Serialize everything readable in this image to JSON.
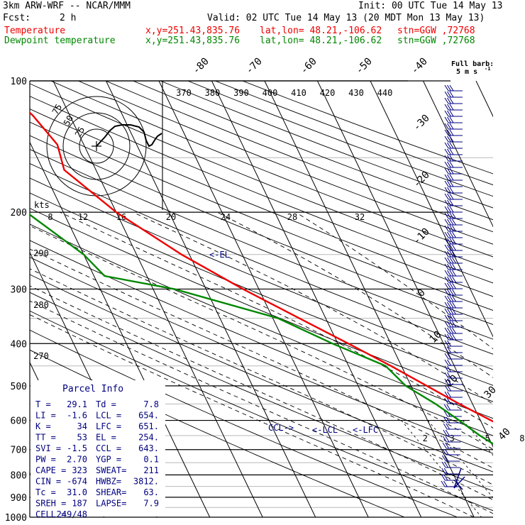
{
  "header": {
    "model": "3km ARW-WRF -- NCAR/MMM",
    "init": "Init: 00 UTC Tue 14 May 13",
    "fcst_label": "Fcst:",
    "fcst_value": "2 h",
    "valid": "Valid: 02 UTC Tue 14 May 13 (20 MDT Mon 13 May 13)",
    "temp_line": {
      "name": "Temperature",
      "xy": "x,y=251.43,835.76",
      "latlon": "lat,lon= 48.21,-106.62",
      "stn": "stn=GGW ,72768",
      "color": "#ee0000"
    },
    "dew_line": {
      "name": "Dewpoint temperature",
      "xy": "x,y=251.43,835.76",
      "latlon": "lat,lon= 48.21,-106.62",
      "stn": "stn=GGW ,72768",
      "color": "#008800"
    }
  },
  "barb_legend": {
    "line1": "Full barb:",
    "line2": "5 m s",
    "unit_sup": "-1"
  },
  "parcel_info": {
    "title": "Parcel Info",
    "rows": [
      [
        "T  =",
        "29.1",
        "Td  =",
        "7.8"
      ],
      [
        "LI  =",
        "-1.6",
        "LCL =",
        "654."
      ],
      [
        "K  =",
        "34",
        "LFC =",
        "651."
      ],
      [
        "TT  =",
        "53",
        "EL  =",
        "254."
      ],
      [
        "SVI =",
        "-1.5",
        "CCL =",
        "643."
      ],
      [
        "PW  =",
        "2.70",
        "YGP =",
        "0.1"
      ],
      [
        "CAPE =",
        "323",
        "SWEAT=",
        "211"
      ],
      [
        "CIN  =",
        "-674",
        "HWBZ=",
        "3812."
      ],
      [
        "Tc  =",
        "31.0",
        "SHEAR=",
        "63."
      ],
      [
        "SREH =",
        "187",
        "LAPSE=",
        "7.9"
      ],
      [
        "CELL =",
        "249/48",
        "",
        ""
      ]
    ]
  },
  "chart_data": {
    "type": "line",
    "subtype": "skew-T log-p diagram",
    "pressure_levels": [
      100,
      200,
      300,
      400,
      500,
      600,
      700,
      800,
      900,
      1000
    ],
    "isotherm_labels": [
      -80,
      -70,
      -60,
      -50,
      -40,
      -30,
      -20,
      -10,
      0,
      10,
      20,
      30,
      40
    ],
    "theta_labels_top": [
      370,
      380,
      390,
      400,
      410,
      420,
      430,
      440
    ],
    "theta_labels_side": [
      290,
      280,
      270
    ],
    "mixing_ratio_labels": [
      "2",
      "3",
      "5",
      "8",
      "12",
      "20"
    ],
    "hodograph": {
      "unit": "kts",
      "ring_labels": [
        "75",
        "50",
        "25"
      ],
      "speed_labels": [
        "8",
        "12",
        "16",
        "20",
        "24",
        "28",
        "32"
      ]
    },
    "annotations": [
      "EL",
      "CCL",
      "LCL",
      "LFC"
    ],
    "series": [
      {
        "name": "Temperature",
        "color": "#ee0000",
        "points": [
          {
            "p": 900,
            "t": 29.1
          },
          {
            "p": 850,
            "t": 24.5
          },
          {
            "p": 800,
            "t": 20.0
          },
          {
            "p": 750,
            "t": 15.0
          },
          {
            "p": 700,
            "t": 10.0
          },
          {
            "p": 650,
            "t": 6.0
          },
          {
            "p": 600,
            "t": 2.0
          },
          {
            "p": 550,
            "t": -2.5
          },
          {
            "p": 500,
            "t": -7.0
          },
          {
            "p": 450,
            "t": -12.0
          },
          {
            "p": 400,
            "t": -18.0
          },
          {
            "p": 350,
            "t": -25.0
          },
          {
            "p": 300,
            "t": -33.0
          },
          {
            "p": 250,
            "t": -41.5
          },
          {
            "p": 200,
            "t": -50.0
          },
          {
            "p": 160,
            "t": -56.0
          },
          {
            "p": 140,
            "t": -55.0
          },
          {
            "p": 120,
            "t": -57.0
          },
          {
            "p": 100,
            "t": -61.0
          }
        ]
      },
      {
        "name": "Dewpoint temperature",
        "color": "#008800",
        "points": [
          {
            "p": 900,
            "t": 7.8
          },
          {
            "p": 850,
            "t": 7.0
          },
          {
            "p": 800,
            "t": 5.0
          },
          {
            "p": 750,
            "t": 3.5
          },
          {
            "p": 700,
            "t": 1.5
          },
          {
            "p": 650,
            "t": -1.5
          },
          {
            "p": 600,
            "t": -4.0
          },
          {
            "p": 550,
            "t": -7.0
          },
          {
            "p": 500,
            "t": -11.0
          },
          {
            "p": 450,
            "t": -13.0
          },
          {
            "p": 400,
            "t": -21.0
          },
          {
            "p": 350,
            "t": -29.0
          },
          {
            "p": 300,
            "t": -46.0
          },
          {
            "p": 280,
            "t": -58.0
          },
          {
            "p": 250,
            "t": -60.0
          },
          {
            "p": 200,
            "t": -67.0
          },
          {
            "p": 150,
            "t": -77.0
          },
          {
            "p": 100,
            "t": -86.0
          }
        ]
      }
    ]
  }
}
